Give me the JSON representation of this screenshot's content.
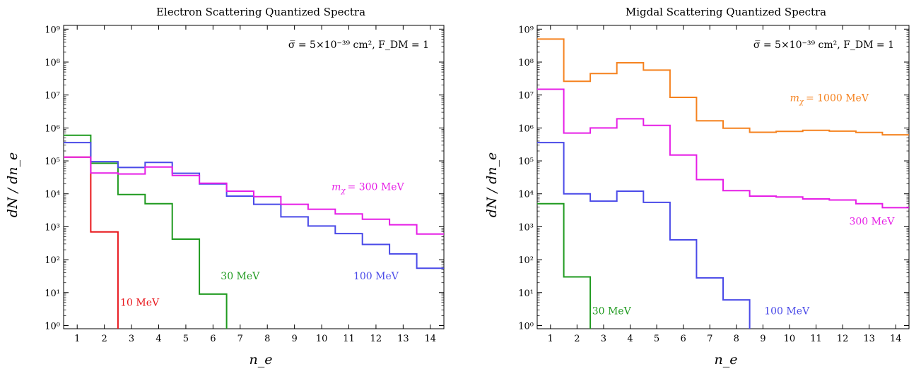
{
  "chart_data": [
    {
      "type": "line",
      "step": true,
      "title": "Electron Scattering Quantized Spectra",
      "annotation": "σ̅ = 5×10⁻³⁹ cm², F_DM = 1",
      "xlabel": "n_e",
      "ylabel": "dN / dn_e",
      "xlim": [
        0.5,
        14.5
      ],
      "ylim": [
        0.8,
        1300000000.0
      ],
      "yscale": "log",
      "grid": false,
      "x_ticks": [
        "1",
        "2",
        "3",
        "4",
        "5",
        "6",
        "7",
        "8",
        "9",
        "10",
        "11",
        "12",
        "13",
        "14"
      ],
      "y_ticks": [
        {
          "v": 1,
          "label": "10⁰"
        },
        {
          "v": 10,
          "label": "10¹"
        },
        {
          "v": 100,
          "label": "10²"
        },
        {
          "v": 1000,
          "label": "10³"
        },
        {
          "v": 10000,
          "label": "10⁴"
        },
        {
          "v": 100000,
          "label": "10⁵"
        },
        {
          "v": 1000000,
          "label": "10⁶"
        },
        {
          "v": 10000000,
          "label": "10⁷"
        },
        {
          "v": 100000000,
          "label": "10⁸"
        },
        {
          "v": 1000000000,
          "label": "10⁹"
        }
      ],
      "series": [
        {
          "name": "10 MeV",
          "color": "#e8161b",
          "x": [
            1,
            2,
            3
          ],
          "values": [
            130000,
            700,
            0.01
          ]
        },
        {
          "name": "30 MeV",
          "color": "#1f9a1f",
          "x": [
            1,
            2,
            3,
            4,
            5,
            6,
            7
          ],
          "values": [
            600000,
            85000,
            9500,
            5000,
            420,
            9,
            0.01
          ]
        },
        {
          "name": "100 MeV",
          "color": "#4a4ae8",
          "x": [
            1,
            2,
            3,
            4,
            5,
            6,
            7,
            8,
            9,
            10,
            11,
            12,
            13,
            14
          ],
          "values": [
            360000,
            95000,
            63000,
            90000,
            42000,
            20000,
            8500,
            4800,
            2000,
            1050,
            620,
            290,
            150,
            55
          ]
        },
        {
          "name": "m_χ = 300 MeV",
          "color": "#e61ee6",
          "x": [
            1,
            2,
            3,
            4,
            5,
            6,
            7,
            8,
            9,
            10,
            11,
            12,
            13,
            14
          ],
          "values": [
            130000,
            43000,
            40000,
            65000,
            36000,
            21000,
            12000,
            8200,
            4800,
            3400,
            2450,
            1700,
            1150,
            600
          ]
        }
      ],
      "labels": [
        {
          "text": "10 MeV",
          "color": "#e8161b",
          "x": 3.3,
          "y": 4
        },
        {
          "text": "30 MeV",
          "color": "#1f9a1f",
          "x": 7.0,
          "y": 25
        },
        {
          "text": "100 MeV",
          "color": "#4a4ae8",
          "x": 12.0,
          "y": 25
        },
        {
          "text": "m",
          "color": "#e61ee6",
          "x": 11.7,
          "y": 13000
        },
        {
          "text": "χ",
          "color": "#e61ee6",
          "x": 11.7,
          "y": 13000
        },
        {
          "text": "= 300 MeV",
          "color": "#e61ee6",
          "x": 11.7,
          "y": 13000
        }
      ]
    },
    {
      "type": "line",
      "step": true,
      "title": "Migdal Scattering Quantized Spectra",
      "annotation": "σ̅ = 5×10⁻³⁹ cm², F_DM = 1",
      "xlabel": "n_e",
      "ylabel": "dN / dn_e",
      "xlim": [
        0.5,
        14.5
      ],
      "ylim": [
        0.8,
        1300000000.0
      ],
      "yscale": "log",
      "grid": false,
      "x_ticks": [
        "1",
        "2",
        "3",
        "4",
        "5",
        "6",
        "7",
        "8",
        "9",
        "10",
        "11",
        "12",
        "13",
        "14"
      ],
      "y_ticks": [
        {
          "v": 1,
          "label": "10⁰"
        },
        {
          "v": 10,
          "label": "10¹"
        },
        {
          "v": 100,
          "label": "10²"
        },
        {
          "v": 1000,
          "label": "10³"
        },
        {
          "v": 10000,
          "label": "10⁴"
        },
        {
          "v": 100000,
          "label": "10⁵"
        },
        {
          "v": 1000000,
          "label": "10⁶"
        },
        {
          "v": 10000000,
          "label": "10⁷"
        },
        {
          "v": 100000000,
          "label": "10⁸"
        },
        {
          "v": 1000000000,
          "label": "10⁹"
        }
      ],
      "series": [
        {
          "name": "30 MeV",
          "color": "#1f9a1f",
          "x": [
            1,
            2,
            3
          ],
          "values": [
            5000,
            30,
            0.01
          ]
        },
        {
          "name": "100 MeV",
          "color": "#4a4ae8",
          "x": [
            1,
            2,
            3,
            4,
            5,
            6,
            7,
            8,
            9
          ],
          "values": [
            360000,
            10000,
            6000,
            12000,
            5500,
            400,
            28,
            6,
            0.01
          ]
        },
        {
          "name": "300 MeV",
          "color": "#e61ee6",
          "x": [
            1,
            2,
            3,
            4,
            5,
            6,
            7,
            8,
            9,
            10,
            11,
            12,
            13,
            14
          ],
          "values": [
            15000000,
            700000,
            1000000,
            1900000,
            1200000,
            150000,
            27000,
            12500,
            8500,
            8000,
            7000,
            6500,
            5000,
            3800
          ]
        },
        {
          "name": "m_χ = 1000 MeV",
          "color": "#f5821f",
          "x": [
            1,
            2,
            3,
            4,
            5,
            6,
            7,
            8,
            9,
            10,
            11,
            12,
            13,
            14
          ],
          "values": [
            500000000,
            26000000,
            45000000,
            95000000,
            57000000,
            8500000,
            1650000,
            980000,
            740000,
            790000,
            850000,
            800000,
            730000,
            620000
          ]
        }
      ],
      "labels": [
        {
          "text": "30 MeV",
          "color": "#1f9a1f",
          "x": 3.3,
          "y": 2.2
        },
        {
          "text": "100 MeV",
          "color": "#4a4ae8",
          "x": 9.9,
          "y": 2.2
        },
        {
          "text": "300 MeV",
          "color": "#e61ee6",
          "x": 13.1,
          "y": 1150
        },
        {
          "text": "m",
          "color": "#f5821f",
          "x": 11.5,
          "y": 6500000
        },
        {
          "text": "χ",
          "color": "#f5821f",
          "x": 11.5,
          "y": 6500000
        },
        {
          "text": "= 1000 MeV",
          "color": "#f5821f",
          "x": 11.5,
          "y": 6500000
        }
      ]
    }
  ]
}
